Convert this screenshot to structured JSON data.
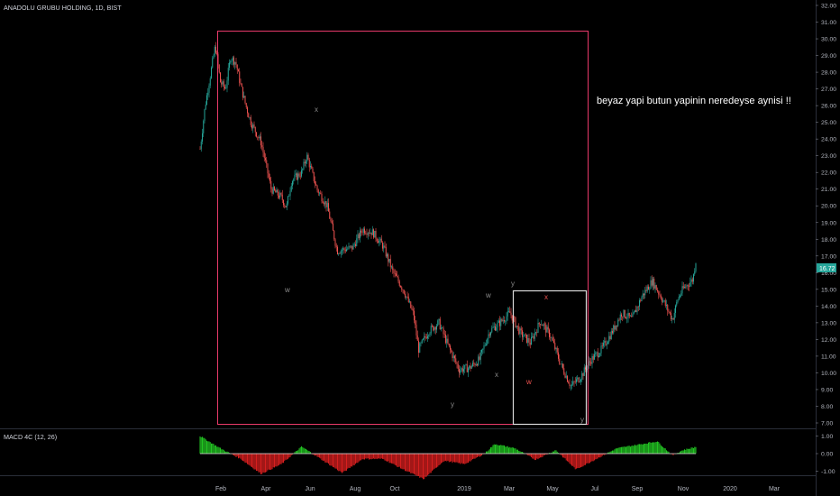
{
  "header": {
    "title": "ANADOLU GRUBU HOLDING, 1D, BIST"
  },
  "annotation": {
    "text": "beyaz yapi butun yapinin neredeyse aynisi !!"
  },
  "current_price": "16.72",
  "colors": {
    "background": "#000000",
    "up": "#26a69a",
    "down": "#ef5350",
    "big_box": "#e83a6a",
    "small_box": "#d9d9d9",
    "wave_label_gray": "#8a8a8a",
    "wave_label_red": "#ef5350",
    "macd_pos": "#22c522",
    "macd_neg": "#d71f1f",
    "price_badge": "#26a69a"
  },
  "chart_data": [
    {
      "type": "candlestick",
      "title": "ANADOLU GRUBU HOLDING, 1D, BIST",
      "x_tick_labels": [
        "Feb",
        "Apr",
        "Jun",
        "Aug",
        "Oct",
        "2019",
        "Mar",
        "May",
        "Jul",
        "Sep",
        "Nov",
        "2020",
        "Mar"
      ],
      "y_tick_labels": [
        "7.00",
        "8.00",
        "9.00",
        "10.00",
        "11.00",
        "12.00",
        "13.00",
        "14.00",
        "15.00",
        "16.00",
        "17.00",
        "18.00",
        "19.00",
        "20.00",
        "21.00",
        "22.00",
        "23.00",
        "24.00",
        "25.00",
        "26.00",
        "27.00",
        "28.00",
        "29.00",
        "30.00",
        "31.00",
        "32.00"
      ],
      "ylim": [
        6.6,
        32.3
      ],
      "grid": false,
      "close_path": [
        {
          "x": "2018-01-08",
          "y": 23.4
        },
        {
          "x": "2018-01-15",
          "y": 26.0
        },
        {
          "x": "2018-01-22",
          "y": 27.8
        },
        {
          "x": "2018-01-29",
          "y": 29.6
        },
        {
          "x": "2018-02-05",
          "y": 27.4
        },
        {
          "x": "2018-02-12",
          "y": 27.0
        },
        {
          "x": "2018-02-19",
          "y": 28.9
        },
        {
          "x": "2018-02-26",
          "y": 28.6
        },
        {
          "x": "2018-03-05",
          "y": 27.2
        },
        {
          "x": "2018-03-12",
          "y": 26.0
        },
        {
          "x": "2018-03-19",
          "y": 25.0
        },
        {
          "x": "2018-04-02",
          "y": 23.8
        },
        {
          "x": "2018-04-16",
          "y": 21.0
        },
        {
          "x": "2018-04-30",
          "y": 20.5
        },
        {
          "x": "2018-05-07",
          "y": 19.9
        },
        {
          "x": "2018-05-14",
          "y": 21.5
        },
        {
          "x": "2018-05-28",
          "y": 22.0
        },
        {
          "x": "2018-06-04",
          "y": 23.0
        },
        {
          "x": "2018-06-18",
          "y": 21.0
        },
        {
          "x": "2018-07-02",
          "y": 20.0
        },
        {
          "x": "2018-07-16",
          "y": 17.3
        },
        {
          "x": "2018-08-06",
          "y": 17.5
        },
        {
          "x": "2018-08-20",
          "y": 18.6
        },
        {
          "x": "2018-09-03",
          "y": 18.4
        },
        {
          "x": "2018-09-17",
          "y": 17.6
        },
        {
          "x": "2018-10-01",
          "y": 16.0
        },
        {
          "x": "2018-10-15",
          "y": 15.0
        },
        {
          "x": "2018-10-29",
          "y": 13.5
        },
        {
          "x": "2018-11-05",
          "y": 11.4
        },
        {
          "x": "2018-11-19",
          "y": 12.5
        },
        {
          "x": "2018-12-03",
          "y": 13.0
        },
        {
          "x": "2018-12-17",
          "y": 11.5
        },
        {
          "x": "2018-12-31",
          "y": 10.2
        },
        {
          "x": "2019-01-14",
          "y": 10.3
        },
        {
          "x": "2019-01-28",
          "y": 10.8
        },
        {
          "x": "2019-02-11",
          "y": 12.5
        },
        {
          "x": "2019-02-25",
          "y": 13.0
        },
        {
          "x": "2019-03-11",
          "y": 13.6
        },
        {
          "x": "2019-03-25",
          "y": 12.4
        },
        {
          "x": "2019-04-08",
          "y": 11.8
        },
        {
          "x": "2019-04-22",
          "y": 13.1
        },
        {
          "x": "2019-05-06",
          "y": 12.2
        },
        {
          "x": "2019-05-20",
          "y": 10.5
        },
        {
          "x": "2019-06-03",
          "y": 9.2
        },
        {
          "x": "2019-06-17",
          "y": 9.8
        },
        {
          "x": "2019-07-01",
          "y": 10.8
        },
        {
          "x": "2019-07-15",
          "y": 11.4
        },
        {
          "x": "2019-07-29",
          "y": 12.4
        },
        {
          "x": "2019-08-12",
          "y": 13.6
        },
        {
          "x": "2019-08-26",
          "y": 13.2
        },
        {
          "x": "2019-09-09",
          "y": 14.6
        },
        {
          "x": "2019-09-23",
          "y": 15.5
        },
        {
          "x": "2019-10-07",
          "y": 14.4
        },
        {
          "x": "2019-10-21",
          "y": 13.2
        },
        {
          "x": "2019-10-28",
          "y": 14.4
        },
        {
          "x": "2019-11-04",
          "y": 15.0
        },
        {
          "x": "2019-11-18",
          "y": 15.6
        },
        {
          "x": "2019-11-22",
          "y": 16.72
        }
      ]
    },
    {
      "type": "bar",
      "title": "MACD 4C (12, 26)",
      "y_tick_labels": [
        "1.00",
        "0.00",
        "-1.00"
      ],
      "ylim": [
        -1.8,
        1.45
      ],
      "grid": false,
      "path": [
        {
          "x": "2018-01-08",
          "y": 1.0
        },
        {
          "x": "2018-02-05",
          "y": 0.3
        },
        {
          "x": "2018-03-05",
          "y": -0.3
        },
        {
          "x": "2018-04-02",
          "y": -1.15
        },
        {
          "x": "2018-04-30",
          "y": -0.6
        },
        {
          "x": "2018-05-28",
          "y": 0.4
        },
        {
          "x": "2018-06-25",
          "y": -0.35
        },
        {
          "x": "2018-07-23",
          "y": -1.1
        },
        {
          "x": "2018-08-20",
          "y": -0.3
        },
        {
          "x": "2018-09-17",
          "y": -0.3
        },
        {
          "x": "2018-10-15",
          "y": -0.9
        },
        {
          "x": "2018-11-12",
          "y": -1.45
        },
        {
          "x": "2018-12-10",
          "y": -0.4
        },
        {
          "x": "2019-01-07",
          "y": -0.6
        },
        {
          "x": "2019-02-04",
          "y": 0.0
        },
        {
          "x": "2019-02-18",
          "y": 0.55
        },
        {
          "x": "2019-03-18",
          "y": 0.3
        },
        {
          "x": "2019-04-15",
          "y": -0.35
        },
        {
          "x": "2019-05-13",
          "y": 0.2
        },
        {
          "x": "2019-06-10",
          "y": -0.9
        },
        {
          "x": "2019-07-08",
          "y": -0.3
        },
        {
          "x": "2019-08-05",
          "y": 0.3
        },
        {
          "x": "2019-09-02",
          "y": 0.5
        },
        {
          "x": "2019-09-30",
          "y": 0.7
        },
        {
          "x": "2019-10-21",
          "y": -0.1
        },
        {
          "x": "2019-11-04",
          "y": 0.2
        },
        {
          "x": "2019-11-22",
          "y": 0.38
        }
      ]
    }
  ],
  "wave_labels": {
    "gray_x_1": "x",
    "gray_w_1": "w",
    "gray_y_1": "y",
    "gray_w_2": "w",
    "gray_y_2": "y",
    "gray_x_2": "x",
    "red_x": "x",
    "red_w": "w",
    "gray_y_3": "y"
  }
}
